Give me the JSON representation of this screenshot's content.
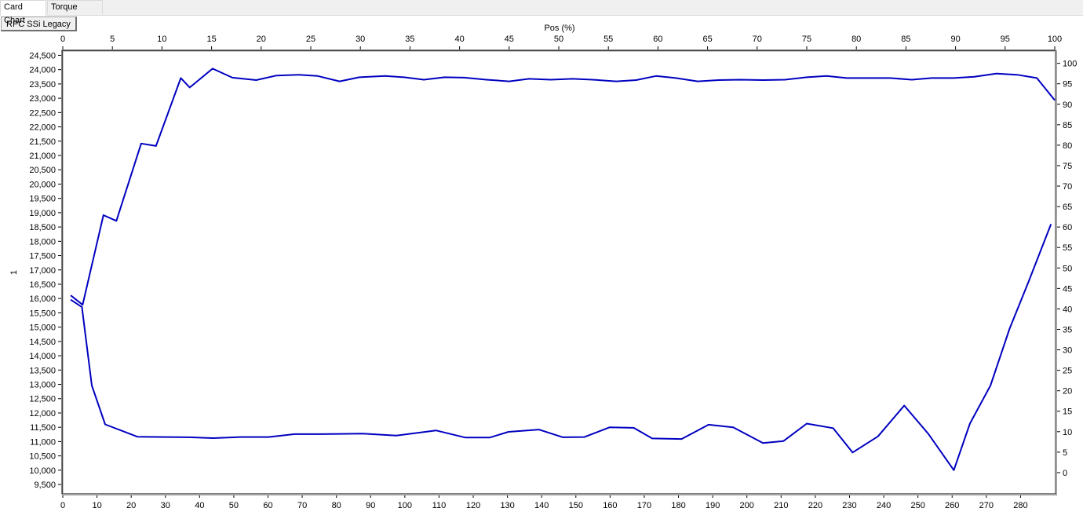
{
  "tabs": [
    {
      "label": "Card Chart",
      "active": true
    },
    {
      "label": "Torque Chart",
      "active": false
    }
  ],
  "chart_label_button": "RPC SSi Legacy",
  "chart_data": {
    "type": "line",
    "title": "",
    "x_bottom": {
      "label": "",
      "min": 0,
      "max": 290,
      "ticks": [
        0,
        10,
        20,
        30,
        40,
        50,
        60,
        70,
        80,
        90,
        100,
        110,
        120,
        130,
        140,
        150,
        160,
        170,
        180,
        190,
        200,
        210,
        220,
        230,
        240,
        250,
        260,
        270,
        280
      ]
    },
    "x_top": {
      "label": "Pos (%)",
      "min": 0,
      "max": 100,
      "ticks": [
        0,
        5,
        10,
        15,
        20,
        25,
        30,
        35,
        40,
        45,
        50,
        55,
        60,
        65,
        70,
        75,
        80,
        85,
        90,
        95,
        100
      ]
    },
    "y_left": {
      "label": "1",
      "min": 9200,
      "max": 24650,
      "ticks": [
        9500,
        10000,
        10500,
        11000,
        11500,
        12000,
        12500,
        13000,
        13500,
        14000,
        14500,
        15000,
        15500,
        16000,
        16500,
        17000,
        17500,
        18000,
        18500,
        19000,
        19500,
        20000,
        20500,
        21000,
        21500,
        22000,
        22500,
        23000,
        23500,
        24000,
        24500
      ]
    },
    "y_right": {
      "label": "",
      "min": -5,
      "max": 103,
      "ticks": [
        0,
        5,
        10,
        15,
        20,
        25,
        30,
        35,
        40,
        45,
        50,
        55,
        60,
        65,
        70,
        75,
        80,
        85,
        90,
        95,
        100
      ]
    },
    "series": [
      {
        "color": "#0000c0",
        "axes": "top-right",
        "points": [
          [
            0.8,
            43.3
          ],
          [
            2.0,
            41.0
          ],
          [
            4.1,
            62.9
          ],
          [
            5.4,
            61.5
          ],
          [
            7.9,
            80.4
          ],
          [
            9.4,
            79.8
          ],
          [
            11.9,
            96.4
          ],
          [
            12.8,
            94.1
          ],
          [
            15.1,
            98.7
          ],
          [
            17.1,
            96.5
          ],
          [
            19.5,
            95.9
          ],
          [
            21.5,
            97.0
          ],
          [
            23.8,
            97.2
          ],
          [
            25.7,
            96.9
          ],
          [
            27.9,
            95.6
          ],
          [
            29.9,
            96.6
          ],
          [
            32.5,
            96.9
          ],
          [
            34.4,
            96.6
          ],
          [
            36.4,
            96.0
          ],
          [
            38.5,
            96.6
          ],
          [
            40.5,
            96.5
          ],
          [
            42.7,
            96.0
          ],
          [
            45.0,
            95.6
          ],
          [
            47.0,
            96.2
          ],
          [
            49.2,
            96.0
          ],
          [
            51.4,
            96.2
          ],
          [
            53.4,
            96.0
          ],
          [
            55.8,
            95.6
          ],
          [
            57.8,
            95.9
          ],
          [
            59.8,
            96.9
          ],
          [
            61.8,
            96.4
          ],
          [
            64.0,
            95.6
          ],
          [
            66.1,
            95.9
          ],
          [
            68.3,
            96.0
          ],
          [
            70.6,
            95.9
          ],
          [
            72.8,
            96.0
          ],
          [
            75.0,
            96.6
          ],
          [
            77.0,
            96.9
          ],
          [
            79.0,
            96.4
          ],
          [
            81.2,
            96.4
          ],
          [
            83.4,
            96.4
          ],
          [
            85.6,
            96.0
          ],
          [
            87.6,
            96.4
          ],
          [
            89.8,
            96.4
          ],
          [
            91.9,
            96.7
          ],
          [
            94.1,
            97.5
          ],
          [
            96.2,
            97.2
          ],
          [
            98.2,
            96.4
          ],
          [
            100.0,
            91.0
          ]
        ]
      },
      {
        "color": "#0000c0",
        "axes": "bottom-left",
        "points": [
          [
            2.3,
            15960
          ],
          [
            5.6,
            15700
          ],
          [
            8.5,
            12960
          ],
          [
            12.4,
            11600
          ],
          [
            21.8,
            11170
          ],
          [
            29.5,
            11160
          ],
          [
            36.9,
            11150
          ],
          [
            44.0,
            11120
          ],
          [
            52.0,
            11160
          ],
          [
            60.2,
            11160
          ],
          [
            67.8,
            11260
          ],
          [
            75.4,
            11260
          ],
          [
            80.9,
            11270
          ],
          [
            87.7,
            11280
          ],
          [
            97.5,
            11210
          ],
          [
            109.1,
            11390
          ],
          [
            117.7,
            11140
          ],
          [
            124.8,
            11140
          ],
          [
            130.3,
            11340
          ],
          [
            139.2,
            11420
          ],
          [
            146.2,
            11150
          ],
          [
            152.5,
            11160
          ],
          [
            159.9,
            11500
          ],
          [
            166.9,
            11480
          ],
          [
            172.3,
            11110
          ],
          [
            180.9,
            11090
          ],
          [
            188.8,
            11590
          ],
          [
            196.0,
            11500
          ],
          [
            204.7,
            10950
          ],
          [
            210.7,
            11020
          ],
          [
            217.5,
            11630
          ],
          [
            225.2,
            11470
          ],
          [
            230.9,
            10620
          ],
          [
            238.3,
            11180
          ],
          [
            246.0,
            12260
          ],
          [
            253.1,
            11260
          ],
          [
            260.5,
            10000
          ],
          [
            265.2,
            11630
          ],
          [
            271.2,
            12960
          ],
          [
            276.8,
            14950
          ],
          [
            282.3,
            16570
          ],
          [
            288.9,
            18600
          ]
        ]
      }
    ]
  }
}
